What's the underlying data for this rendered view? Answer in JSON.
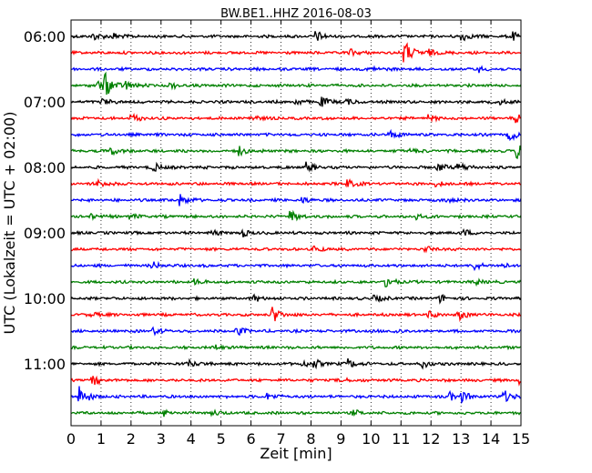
{
  "chart_data": {
    "type": "line",
    "title": "BW.BE1..HHZ 2016-08-03",
    "xlabel": "Zeit  [min]",
    "ylabel": "UTC (Lokalzeit = UTC + 02:00)",
    "xlim": [
      0,
      15
    ],
    "x_ticks": [
      "0",
      "1",
      "2",
      "3",
      "4",
      "5",
      "6",
      "7",
      "8",
      "9",
      "10",
      "11",
      "12",
      "13",
      "14",
      "15"
    ],
    "y_tick_labels": [
      "06:00",
      "07:00",
      "08:00",
      "09:00",
      "10:00",
      "11:00"
    ],
    "grid": "vertical dotted at each minute",
    "color_cycle": [
      "#000000",
      "#ff0000",
      "#0000ff",
      "#008000"
    ],
    "traces": [
      {
        "start": "06:00",
        "events": [
          {
            "x": 0.7,
            "amp": 5
          },
          {
            "x": 1.4,
            "amp": 4
          },
          {
            "x": 8.15,
            "amp": 6
          },
          {
            "x": 13.0,
            "amp": 6
          },
          {
            "x": 14.7,
            "amp": 5
          }
        ]
      },
      {
        "start": "06:15",
        "events": [
          {
            "x": 9.3,
            "amp": 4
          },
          {
            "x": 11.1,
            "amp": 15
          },
          {
            "x": 11.9,
            "amp": 4
          }
        ]
      },
      {
        "start": "06:30",
        "events": [
          {
            "x": 10.0,
            "amp": 3
          },
          {
            "x": 13.6,
            "amp": 3
          }
        ]
      },
      {
        "start": "06:45",
        "events": [
          {
            "x": 0.9,
            "amp": 5
          },
          {
            "x": 1.1,
            "amp": 14
          },
          {
            "x": 1.8,
            "amp": 5
          },
          {
            "x": 3.3,
            "amp": 3
          }
        ]
      },
      {
        "start": "07:00",
        "events": [
          {
            "x": 1.0,
            "amp": 4
          },
          {
            "x": 7.4,
            "amp": 4
          },
          {
            "x": 8.3,
            "amp": 6
          },
          {
            "x": 9.1,
            "amp": 4
          },
          {
            "x": 14.3,
            "amp": 3
          }
        ]
      },
      {
        "start": "07:15",
        "events": [
          {
            "x": 2.0,
            "amp": 5
          },
          {
            "x": 6.0,
            "amp": 4
          },
          {
            "x": 11.9,
            "amp": 3
          },
          {
            "x": 14.8,
            "amp": 5
          }
        ]
      },
      {
        "start": "07:30",
        "events": [
          {
            "x": 10.6,
            "amp": 5
          },
          {
            "x": 14.6,
            "amp": 7
          }
        ]
      },
      {
        "start": "07:45",
        "events": [
          {
            "x": 1.3,
            "amp": 5
          },
          {
            "x": 5.6,
            "amp": 5
          },
          {
            "x": 11.3,
            "amp": 3
          },
          {
            "x": 14.85,
            "amp": 9
          }
        ]
      },
      {
        "start": "08:00",
        "events": [
          {
            "x": 2.7,
            "amp": 6
          },
          {
            "x": 7.8,
            "amp": 6
          },
          {
            "x": 12.2,
            "amp": 5
          },
          {
            "x": 12.9,
            "amp": 6
          }
        ]
      },
      {
        "start": "08:15",
        "events": [
          {
            "x": 0.9,
            "amp": 5
          },
          {
            "x": 9.2,
            "amp": 5
          },
          {
            "x": 12.1,
            "amp": 3
          }
        ]
      },
      {
        "start": "08:30",
        "events": [
          {
            "x": 3.6,
            "amp": 7
          },
          {
            "x": 7.7,
            "amp": 3
          },
          {
            "x": 12.5,
            "amp": 3
          }
        ]
      },
      {
        "start": "08:45",
        "events": [
          {
            "x": 0.6,
            "amp": 3
          },
          {
            "x": 1.9,
            "amp": 3
          },
          {
            "x": 7.3,
            "amp": 7
          },
          {
            "x": 11.5,
            "amp": 3
          }
        ]
      },
      {
        "start": "09:00",
        "events": [
          {
            "x": 4.7,
            "amp": 3
          },
          {
            "x": 5.7,
            "amp": 4
          },
          {
            "x": 13.1,
            "amp": 4
          }
        ]
      },
      {
        "start": "09:15",
        "events": [
          {
            "x": 8.1,
            "amp": 3
          },
          {
            "x": 11.8,
            "amp": 3
          }
        ]
      },
      {
        "start": "09:30",
        "events": [
          {
            "x": 2.7,
            "amp": 4
          },
          {
            "x": 13.4,
            "amp": 5
          },
          {
            "x": 14.3,
            "amp": 3
          }
        ]
      },
      {
        "start": "09:45",
        "events": [
          {
            "x": 4.1,
            "amp": 3
          },
          {
            "x": 10.5,
            "amp": 7
          },
          {
            "x": 13.5,
            "amp": 3
          }
        ]
      },
      {
        "start": "10:00",
        "events": [
          {
            "x": 6.1,
            "amp": 4
          },
          {
            "x": 10.1,
            "amp": 4
          },
          {
            "x": 12.3,
            "amp": 4
          }
        ]
      },
      {
        "start": "10:15",
        "events": [
          {
            "x": 0.7,
            "amp": 3
          },
          {
            "x": 6.7,
            "amp": 9
          },
          {
            "x": 11.9,
            "amp": 4
          },
          {
            "x": 12.9,
            "amp": 6
          }
        ]
      },
      {
        "start": "10:30",
        "events": [
          {
            "x": 2.7,
            "amp": 4
          },
          {
            "x": 5.5,
            "amp": 5
          },
          {
            "x": 10.7,
            "amp": 3
          }
        ]
      },
      {
        "start": "10:45",
        "events": [
          {
            "x": 4.8,
            "amp": 3
          }
        ]
      },
      {
        "start": "11:00",
        "events": [
          {
            "x": 3.9,
            "amp": 5
          },
          {
            "x": 7.7,
            "amp": 4
          },
          {
            "x": 8.1,
            "amp": 4
          },
          {
            "x": 9.2,
            "amp": 6
          },
          {
            "x": 11.7,
            "amp": 4
          }
        ]
      },
      {
        "start": "11:15",
        "events": [
          {
            "x": 0.7,
            "amp": 6
          },
          {
            "x": 9.0,
            "amp": 3
          },
          {
            "x": 14.9,
            "amp": 5
          }
        ]
      },
      {
        "start": "11:30",
        "events": [
          {
            "x": 0.25,
            "amp": 13
          },
          {
            "x": 6.5,
            "amp": 4
          },
          {
            "x": 12.6,
            "amp": 5
          },
          {
            "x": 13.0,
            "amp": 5
          },
          {
            "x": 14.4,
            "amp": 8
          }
        ]
      },
      {
        "start": "11:45",
        "events": [
          {
            "x": 3.1,
            "amp": 3
          },
          {
            "x": 4.7,
            "amp": 3
          },
          {
            "x": 9.4,
            "amp": 3
          }
        ]
      }
    ]
  }
}
